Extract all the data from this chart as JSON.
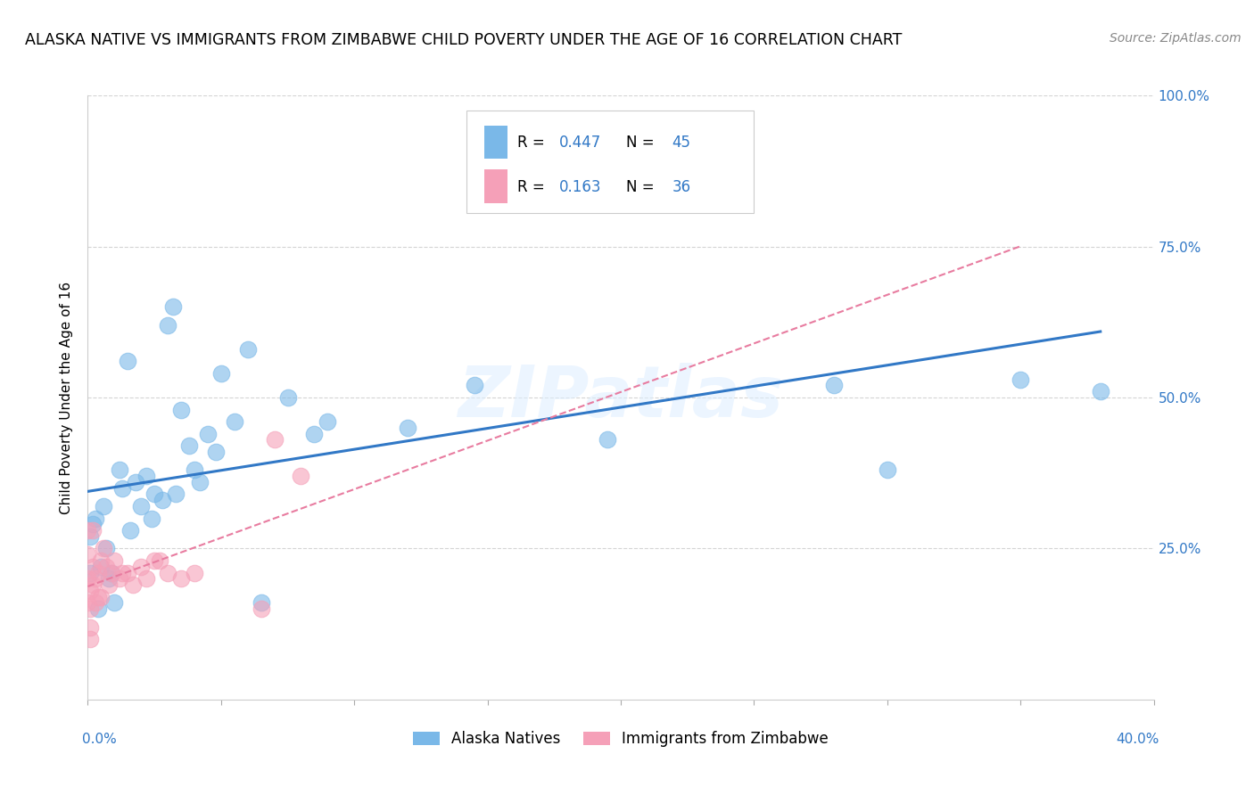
{
  "title": "ALASKA NATIVE VS IMMIGRANTS FROM ZIMBABWE CHILD POVERTY UNDER THE AGE OF 16 CORRELATION CHART",
  "source": "Source: ZipAtlas.com",
  "ylabel": "Child Poverty Under the Age of 16",
  "blue_color": "#7ab8e8",
  "pink_color": "#f5a0b8",
  "blue_line_color": "#3178c6",
  "pink_line_color": "#e87ca0",
  "alaska_scatter_x": [
    0.001,
    0.001,
    0.002,
    0.003,
    0.004,
    0.005,
    0.006,
    0.007,
    0.008,
    0.009,
    0.01,
    0.012,
    0.013,
    0.015,
    0.016,
    0.018,
    0.02,
    0.022,
    0.024,
    0.025,
    0.028,
    0.03,
    0.032,
    0.033,
    0.035,
    0.038,
    0.04,
    0.042,
    0.045,
    0.048,
    0.05,
    0.055,
    0.06,
    0.065,
    0.075,
    0.085,
    0.09,
    0.12,
    0.145,
    0.18,
    0.195,
    0.28,
    0.3,
    0.35,
    0.38
  ],
  "alaska_scatter_y": [
    0.21,
    0.27,
    0.29,
    0.3,
    0.15,
    0.22,
    0.32,
    0.25,
    0.2,
    0.21,
    0.16,
    0.38,
    0.35,
    0.56,
    0.28,
    0.36,
    0.32,
    0.37,
    0.3,
    0.34,
    0.33,
    0.62,
    0.65,
    0.34,
    0.48,
    0.42,
    0.38,
    0.36,
    0.44,
    0.41,
    0.54,
    0.46,
    0.58,
    0.16,
    0.5,
    0.44,
    0.46,
    0.45,
    0.52,
    0.86,
    0.43,
    0.52,
    0.38,
    0.53,
    0.51
  ],
  "zimbabwe_scatter_x": [
    0.0,
    0.0,
    0.0,
    0.0,
    0.001,
    0.001,
    0.001,
    0.001,
    0.002,
    0.002,
    0.002,
    0.003,
    0.003,
    0.004,
    0.004,
    0.005,
    0.005,
    0.006,
    0.007,
    0.008,
    0.009,
    0.01,
    0.012,
    0.013,
    0.015,
    0.017,
    0.02,
    0.022,
    0.025,
    0.027,
    0.03,
    0.035,
    0.04,
    0.065,
    0.07,
    0.08
  ],
  "zimbabwe_scatter_y": [
    0.28,
    0.24,
    0.2,
    0.16,
    0.18,
    0.15,
    0.12,
    0.1,
    0.19,
    0.22,
    0.28,
    0.2,
    0.16,
    0.21,
    0.17,
    0.23,
    0.17,
    0.25,
    0.22,
    0.19,
    0.21,
    0.23,
    0.2,
    0.21,
    0.21,
    0.19,
    0.22,
    0.2,
    0.23,
    0.23,
    0.21,
    0.2,
    0.21,
    0.15,
    0.43,
    0.37
  ],
  "xlim": [
    0.0,
    0.4
  ],
  "ylim": [
    0.0,
    1.0
  ],
  "ytick_vals": [
    0.25,
    0.5,
    0.75,
    1.0
  ],
  "ytick_labels": [
    "25.0%",
    "50.0%",
    "75.0%",
    "100.0%"
  ],
  "background_color": "#ffffff",
  "grid_color": "#d0d0d0"
}
